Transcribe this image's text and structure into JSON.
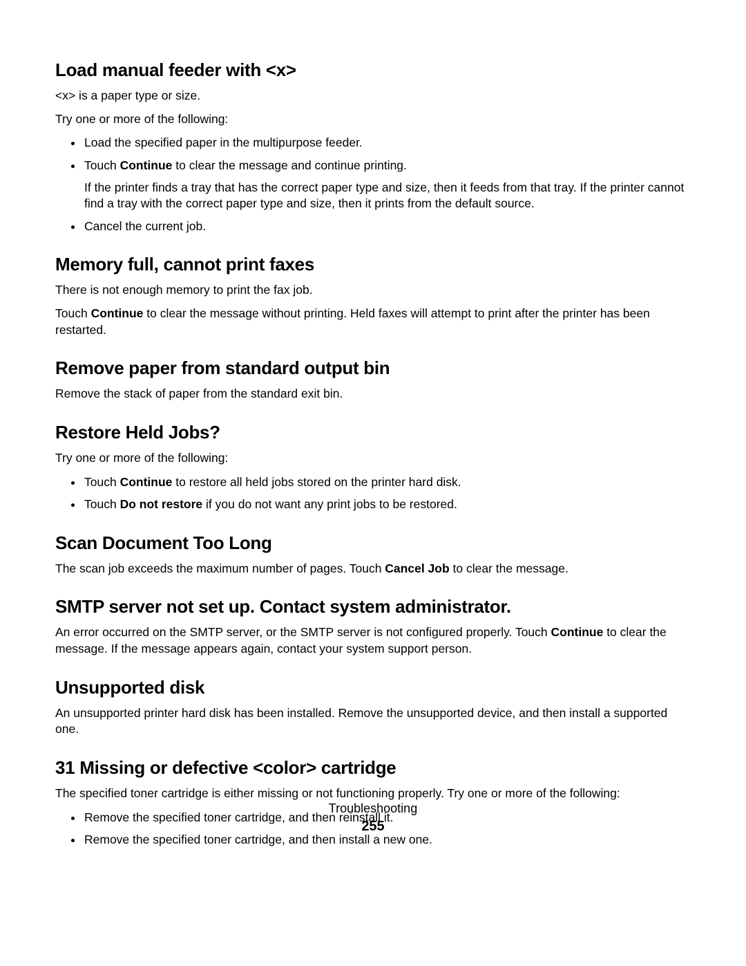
{
  "doc": {
    "footer_section": "Troubleshooting",
    "footer_page": "255",
    "sections": {
      "s1": {
        "heading": "Load manual feeder with <x>",
        "p1": "<x> is a paper type or size.",
        "p2": "Try one or more of the following:",
        "li1": "Load the specified paper in the multipurpose feeder.",
        "li2a": "Touch ",
        "li2b": "Continue",
        "li2c": " to clear the message and continue printing.",
        "li2p": "If the printer finds a tray that has the correct paper type and size, then it feeds from that tray. If the printer cannot find a tray with the correct paper type and size, then it prints from the default source.",
        "li3": "Cancel the current job."
      },
      "s2": {
        "heading": "Memory full, cannot print faxes",
        "p1": "There is not enough memory to print the fax job.",
        "p2a": "Touch ",
        "p2b": "Continue",
        "p2c": " to clear the message without printing. Held faxes will attempt to print after the printer has been restarted."
      },
      "s3": {
        "heading": "Remove paper from standard output bin",
        "p1": "Remove the stack of paper from the standard exit bin."
      },
      "s4": {
        "heading": "Restore Held Jobs?",
        "p1": "Try one or more of the following:",
        "li1a": "Touch ",
        "li1b": "Continue",
        "li1c": " to restore all held jobs stored on the printer hard disk.",
        "li2a": "Touch ",
        "li2b": "Do not restore",
        "li2c": " if you do not want any print jobs to be restored."
      },
      "s5": {
        "heading": "Scan Document Too Long",
        "p1a": "The scan job exceeds the maximum number of pages. Touch ",
        "p1b": "Cancel Job",
        "p1c": " to clear the message."
      },
      "s6": {
        "heading": "SMTP server not set up. Contact system administrator.",
        "p1a": "An error occurred on the SMTP server, or the SMTP server is not configured properly. Touch ",
        "p1b": "Continue",
        "p1c": " to clear the message. If the message appears again, contact your system support person."
      },
      "s7": {
        "heading": "Unsupported disk",
        "p1": "An unsupported printer hard disk has been installed. Remove the unsupported device, and then install a supported one."
      },
      "s8": {
        "heading": "31 Missing or defective <color> cartridge",
        "p1": "The specified toner cartridge is either missing or not functioning properly. Try one or more of the following:",
        "li1": "Remove the specified toner cartridge, and then reinstall it.",
        "li2": "Remove the specified toner cartridge, and then install a new one."
      }
    }
  }
}
